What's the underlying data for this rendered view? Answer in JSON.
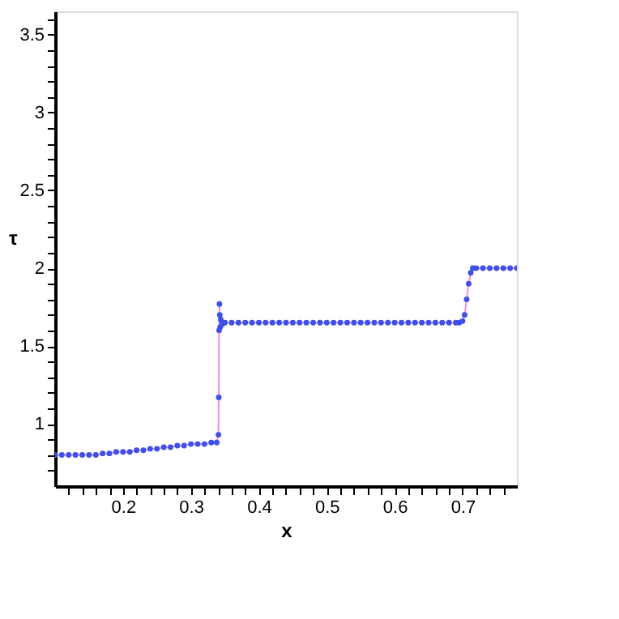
{
  "chart_data": {
    "type": "scatter",
    "xlabel": "x",
    "ylabel": "τ",
    "xlim": [
      0.1,
      0.78
    ],
    "ylim": [
      0.6,
      3.65
    ],
    "xticks": [
      {
        "value": 0.12,
        "label": null
      },
      {
        "value": 0.14,
        "label": null
      },
      {
        "value": 0.16,
        "label": null
      },
      {
        "value": 0.18,
        "label": null
      },
      0.2,
      {
        "value": 0.22,
        "label": null
      },
      {
        "value": 0.24,
        "label": null
      },
      {
        "value": 0.26,
        "label": null
      },
      {
        "value": 0.28,
        "label": null
      },
      0.3,
      {
        "value": 0.32,
        "label": null
      },
      {
        "value": 0.34,
        "label": null
      },
      {
        "value": 0.36,
        "label": null
      },
      {
        "value": 0.38,
        "label": null
      },
      0.4,
      {
        "value": 0.42,
        "label": null
      },
      {
        "value": 0.44,
        "label": null
      },
      {
        "value": 0.46,
        "label": null
      },
      {
        "value": 0.48,
        "label": null
      },
      0.5,
      {
        "value": 0.52,
        "label": null
      },
      {
        "value": 0.54,
        "label": null
      },
      {
        "value": 0.56,
        "label": null
      },
      {
        "value": 0.58,
        "label": null
      },
      0.6,
      {
        "value": 0.62,
        "label": null
      },
      {
        "value": 0.64,
        "label": null
      },
      {
        "value": 0.66,
        "label": null
      },
      {
        "value": 0.68,
        "label": null
      },
      0.7,
      {
        "value": 0.72,
        "label": null
      },
      {
        "value": 0.74,
        "label": null
      },
      {
        "value": 0.76,
        "label": null
      }
    ],
    "yticks": [
      {
        "value": 0.7,
        "label": null
      },
      {
        "value": 0.8,
        "label": null
      },
      {
        "value": 0.9,
        "label": null
      },
      1,
      {
        "value": 1.1,
        "label": null
      },
      {
        "value": 1.2,
        "label": null
      },
      {
        "value": 1.3,
        "label": null
      },
      {
        "value": 1.4,
        "label": null
      },
      1.5,
      {
        "value": 1.6,
        "label": null
      },
      {
        "value": 1.7,
        "label": null
      },
      {
        "value": 1.8,
        "label": null
      },
      {
        "value": 1.9,
        "label": null
      },
      2,
      {
        "value": 2.1,
        "label": null
      },
      {
        "value": 2.2,
        "label": null
      },
      {
        "value": 2.3,
        "label": null
      },
      {
        "value": 2.4,
        "label": null
      },
      2.5,
      {
        "value": 2.6,
        "label": null
      },
      {
        "value": 2.7,
        "label": null
      },
      {
        "value": 2.8,
        "label": null
      },
      {
        "value": 2.9,
        "label": null
      },
      3,
      {
        "value": 3.1,
        "label": null
      },
      {
        "value": 3.2,
        "label": null
      },
      {
        "value": 3.3,
        "label": null
      },
      {
        "value": 3.4,
        "label": null
      },
      3.5,
      {
        "value": 3.6,
        "label": null
      }
    ],
    "grid": false,
    "legend": false,
    "marker": "circle",
    "x": [
      0.1,
      0.11,
      0.12,
      0.13,
      0.14,
      0.15,
      0.16,
      0.17,
      0.18,
      0.19,
      0.2,
      0.21,
      0.22,
      0.23,
      0.24,
      0.25,
      0.26,
      0.27,
      0.28,
      0.29,
      0.3,
      0.31,
      0.32,
      0.33,
      0.338,
      0.3405,
      0.341,
      0.3415,
      0.342,
      0.3425,
      0.343,
      0.344,
      0.346,
      0.35,
      0.36,
      0.37,
      0.38,
      0.39,
      0.4,
      0.41,
      0.42,
      0.43,
      0.44,
      0.45,
      0.46,
      0.47,
      0.48,
      0.49,
      0.5,
      0.51,
      0.52,
      0.53,
      0.54,
      0.55,
      0.56,
      0.57,
      0.58,
      0.59,
      0.6,
      0.61,
      0.62,
      0.63,
      0.64,
      0.65,
      0.66,
      0.67,
      0.68,
      0.69,
      0.695,
      0.7,
      0.703,
      0.706,
      0.709,
      0.712,
      0.715,
      0.72,
      0.73,
      0.74,
      0.75,
      0.76,
      0.77,
      0.78
    ],
    "series": [
      {
        "type": "line",
        "marker": "none",
        "color": "#f08ce6",
        "values": [
          0.8,
          0.8,
          0.8,
          0.8,
          0.8,
          0.8,
          0.8,
          0.81,
          0.81,
          0.82,
          0.82,
          0.82,
          0.83,
          0.83,
          0.84,
          0.84,
          0.85,
          0.85,
          0.86,
          0.86,
          0.87,
          0.87,
          0.87,
          0.88,
          0.88,
          0.93,
          1.17,
          1.6,
          1.77,
          1.7,
          1.62,
          1.67,
          1.64,
          1.65,
          1.65,
          1.65,
          1.65,
          1.65,
          1.65,
          1.65,
          1.65,
          1.65,
          1.65,
          1.65,
          1.65,
          1.65,
          1.65,
          1.65,
          1.65,
          1.65,
          1.65,
          1.65,
          1.65,
          1.65,
          1.65,
          1.65,
          1.65,
          1.65,
          1.65,
          1.65,
          1.65,
          1.65,
          1.65,
          1.65,
          1.65,
          1.65,
          1.65,
          1.65,
          1.65,
          1.66,
          1.7,
          1.8,
          1.9,
          1.97,
          2.0,
          2.0,
          2.0,
          2.0,
          2.0,
          2.0,
          2.0,
          2.0
        ]
      },
      {
        "type": "scatter",
        "color": "#3c50f0",
        "values": [
          0.8,
          0.8,
          0.8,
          0.8,
          0.8,
          0.8,
          0.8,
          0.81,
          0.81,
          0.82,
          0.82,
          0.82,
          0.83,
          0.83,
          0.84,
          0.84,
          0.85,
          0.85,
          0.86,
          0.86,
          0.87,
          0.87,
          0.87,
          0.88,
          0.88,
          0.93,
          1.17,
          1.6,
          1.77,
          1.7,
          1.62,
          1.67,
          1.64,
          1.65,
          1.65,
          1.65,
          1.65,
          1.65,
          1.65,
          1.65,
          1.65,
          1.65,
          1.65,
          1.65,
          1.65,
          1.65,
          1.65,
          1.65,
          1.65,
          1.65,
          1.65,
          1.65,
          1.65,
          1.65,
          1.65,
          1.65,
          1.65,
          1.65,
          1.65,
          1.65,
          1.65,
          1.65,
          1.65,
          1.65,
          1.65,
          1.65,
          1.65,
          1.65,
          1.65,
          1.66,
          1.7,
          1.8,
          1.9,
          1.97,
          2.0,
          2.0,
          2.0,
          2.0,
          2.0,
          2.0,
          2.0,
          2.0
        ]
      }
    ]
  }
}
